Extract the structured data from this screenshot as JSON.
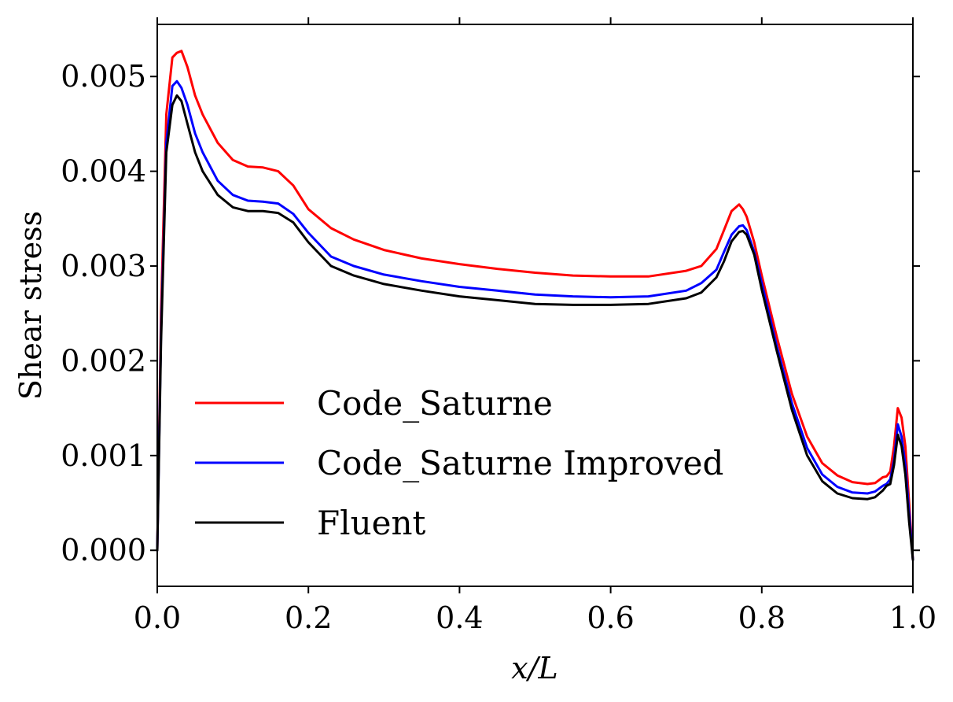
{
  "chart_data": {
    "type": "line",
    "xlabel": "x/L",
    "ylabel": "Shear stress",
    "xlim": [
      0.0,
      1.0
    ],
    "ylim": [
      -0.00038,
      0.00555
    ],
    "xticks": [
      {
        "value": 0.0,
        "label": "0.0"
      },
      {
        "value": 0.2,
        "label": "0.2"
      },
      {
        "value": 0.4,
        "label": "0.4"
      },
      {
        "value": 0.6,
        "label": "0.6"
      },
      {
        "value": 0.8,
        "label": "0.8"
      },
      {
        "value": 1.0,
        "label": "1.0"
      }
    ],
    "yticks": [
      {
        "value": 0.0,
        "label": "0.000"
      },
      {
        "value": 0.001,
        "label": "0.001"
      },
      {
        "value": 0.002,
        "label": "0.002"
      },
      {
        "value": 0.003,
        "label": "0.003"
      },
      {
        "value": 0.004,
        "label": "0.004"
      },
      {
        "value": 0.005,
        "label": "0.005"
      }
    ],
    "grid": false,
    "legend_position": "lower-left",
    "series": [
      {
        "name": "Code_Saturne",
        "color": "#ff0000",
        "x": [
          0.0,
          0.005,
          0.012,
          0.02,
          0.026,
          0.032,
          0.04,
          0.05,
          0.06,
          0.08,
          0.1,
          0.12,
          0.14,
          0.16,
          0.18,
          0.2,
          0.23,
          0.26,
          0.3,
          0.35,
          0.4,
          0.45,
          0.5,
          0.55,
          0.6,
          0.65,
          0.7,
          0.72,
          0.74,
          0.75,
          0.76,
          0.77,
          0.775,
          0.78,
          0.79,
          0.8,
          0.82,
          0.84,
          0.86,
          0.88,
          0.9,
          0.92,
          0.94,
          0.95,
          0.96,
          0.965,
          0.97,
          0.975,
          0.98,
          0.985,
          0.99,
          0.995,
          1.0
        ],
        "y": [
          0.0,
          0.0025,
          0.0046,
          0.0052,
          0.00525,
          0.00527,
          0.0051,
          0.0048,
          0.0046,
          0.0043,
          0.00412,
          0.00405,
          0.00404,
          0.004,
          0.00385,
          0.0036,
          0.0034,
          0.00328,
          0.00317,
          0.00308,
          0.00302,
          0.00297,
          0.00293,
          0.0029,
          0.00289,
          0.00289,
          0.00295,
          0.003,
          0.00318,
          0.00338,
          0.00358,
          0.00365,
          0.0036,
          0.00352,
          0.00325,
          0.0029,
          0.00225,
          0.00165,
          0.0012,
          0.00092,
          0.00079,
          0.00072,
          0.0007,
          0.00071,
          0.00077,
          0.00078,
          0.00083,
          0.0011,
          0.0015,
          0.0014,
          0.0011,
          0.0005,
          -0.0001
        ]
      },
      {
        "name": "Code_Saturne Improved",
        "color": "#0000ff",
        "x": [
          0.0,
          0.005,
          0.012,
          0.02,
          0.026,
          0.032,
          0.04,
          0.05,
          0.06,
          0.08,
          0.1,
          0.12,
          0.14,
          0.16,
          0.18,
          0.2,
          0.23,
          0.26,
          0.3,
          0.35,
          0.4,
          0.45,
          0.5,
          0.55,
          0.6,
          0.65,
          0.7,
          0.72,
          0.74,
          0.75,
          0.76,
          0.77,
          0.775,
          0.78,
          0.79,
          0.8,
          0.82,
          0.84,
          0.86,
          0.88,
          0.9,
          0.92,
          0.94,
          0.95,
          0.96,
          0.965,
          0.97,
          0.975,
          0.98,
          0.985,
          0.99,
          0.995,
          1.0
        ],
        "y": [
          0.0,
          0.0023,
          0.0043,
          0.0049,
          0.00495,
          0.00488,
          0.0047,
          0.0044,
          0.0042,
          0.0039,
          0.00375,
          0.00369,
          0.00368,
          0.00366,
          0.00355,
          0.00335,
          0.0031,
          0.003,
          0.00291,
          0.00284,
          0.00278,
          0.00274,
          0.0027,
          0.00268,
          0.00267,
          0.00268,
          0.00274,
          0.00282,
          0.00296,
          0.00315,
          0.00333,
          0.00342,
          0.00343,
          0.00338,
          0.00315,
          0.00282,
          0.00215,
          0.00155,
          0.00108,
          0.0008,
          0.00067,
          0.00061,
          0.0006,
          0.00062,
          0.00068,
          0.0007,
          0.00075,
          0.00095,
          0.00133,
          0.0012,
          0.0009,
          0.0004,
          -0.0001
        ]
      },
      {
        "name": "Fluent",
        "color": "#000000",
        "x": [
          0.0,
          0.005,
          0.012,
          0.02,
          0.026,
          0.032,
          0.04,
          0.05,
          0.06,
          0.08,
          0.1,
          0.12,
          0.14,
          0.16,
          0.18,
          0.2,
          0.23,
          0.26,
          0.3,
          0.35,
          0.4,
          0.45,
          0.5,
          0.55,
          0.6,
          0.65,
          0.7,
          0.72,
          0.74,
          0.75,
          0.76,
          0.77,
          0.775,
          0.78,
          0.79,
          0.8,
          0.82,
          0.84,
          0.86,
          0.88,
          0.9,
          0.92,
          0.94,
          0.95,
          0.96,
          0.965,
          0.97,
          0.975,
          0.98,
          0.985,
          0.99,
          0.995,
          1.0
        ],
        "y": [
          0.0,
          0.0022,
          0.0042,
          0.0047,
          0.0048,
          0.00474,
          0.0045,
          0.0042,
          0.004,
          0.00375,
          0.00362,
          0.00358,
          0.00358,
          0.00356,
          0.00346,
          0.00325,
          0.003,
          0.0029,
          0.00281,
          0.00274,
          0.00268,
          0.00264,
          0.0026,
          0.00259,
          0.00259,
          0.0026,
          0.00266,
          0.00272,
          0.00288,
          0.00305,
          0.00326,
          0.00336,
          0.00337,
          0.00333,
          0.00312,
          0.00275,
          0.0021,
          0.00148,
          0.001,
          0.00073,
          0.0006,
          0.00055,
          0.00054,
          0.00056,
          0.00063,
          0.00068,
          0.0007,
          0.0009,
          0.00122,
          0.0011,
          0.0008,
          0.0003,
          -0.0001
        ]
      }
    ]
  }
}
